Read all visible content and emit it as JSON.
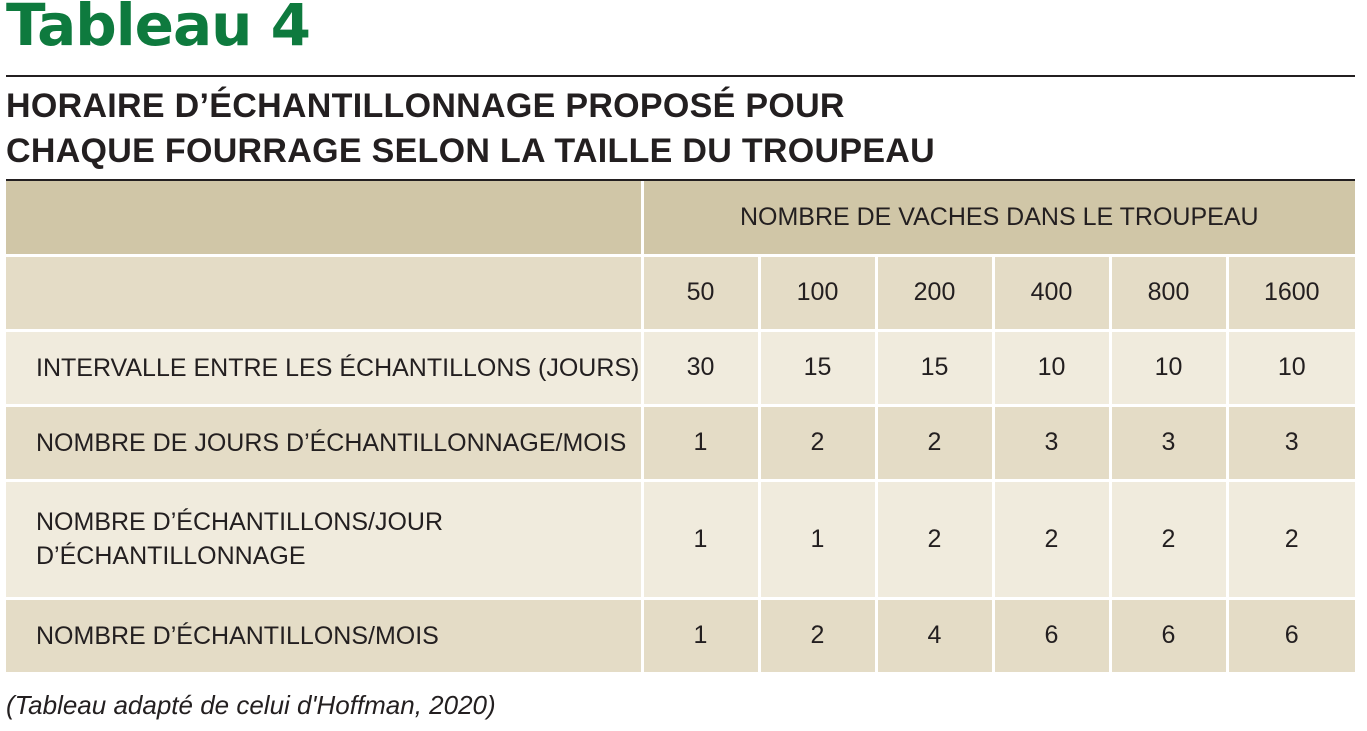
{
  "title": "Tableau 4",
  "subtitle": {
    "line1": "HORAIRE D’ÉCHANTILLONNAGE PROPOSÉ POUR",
    "line2": "CHAQUE FOURRAGE SELON LA TAILLE DU TROUPEAU"
  },
  "table": {
    "group_header": "NOMBRE DE VACHES DANS LE TROUPEAU",
    "herd_sizes": [
      "50",
      "100",
      "200",
      "400",
      "800",
      "1600"
    ],
    "rows": [
      {
        "label": "INTERVALLE ENTRE LES ÉCHANTILLONS (JOURS)",
        "values": [
          "30",
          "15",
          "15",
          "10",
          "10",
          "10"
        ]
      },
      {
        "label": "NOMBRE DE JOURS D’ÉCHANTILLONNAGE/MOIS",
        "values": [
          "1",
          "2",
          "2",
          "3",
          "3",
          "3"
        ]
      },
      {
        "label_line1": "NOMBRE D’ÉCHANTILLONS/JOUR",
        "label_line2": "D’ÉCHANTILLONNAGE",
        "values": [
          "1",
          "1",
          "2",
          "2",
          "2",
          "2"
        ]
      },
      {
        "label": "NOMBRE D’ÉCHANTILLONS/MOIS",
        "values": [
          "1",
          "2",
          "4",
          "6",
          "6",
          "6"
        ]
      }
    ]
  },
  "source": "(Tableau adapté de celui d'Hoffman, 2020)",
  "colors": {
    "title_green": "#0e7a3e",
    "header_tan": "#d0c6a7",
    "row_mid": "#e4dcc6",
    "row_light": "#f0ebdd",
    "text": "#231f20"
  }
}
